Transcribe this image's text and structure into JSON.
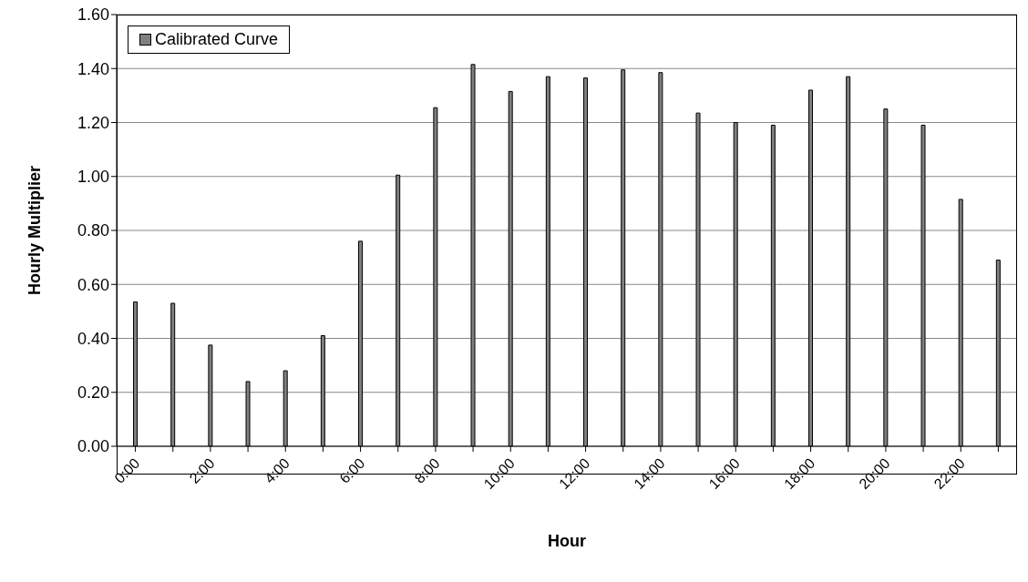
{
  "chart_data": {
    "type": "bar",
    "xlabel": "Hour",
    "ylabel": "Hourly Multiplier",
    "categories": [
      "0:00",
      null,
      "2:00",
      null,
      "4:00",
      null,
      "6:00",
      null,
      "8:00",
      null,
      "10:00",
      null,
      "12:00",
      null,
      "14:00",
      null,
      "16:00",
      null,
      "18:00",
      null,
      "20:00",
      null,
      "22:00",
      null
    ],
    "series": [
      {
        "name": "Calibrated Curve",
        "color": "#808080",
        "values": [
          0.535,
          0.53,
          0.375,
          0.24,
          0.28,
          0.41,
          0.76,
          1.005,
          1.255,
          1.415,
          1.315,
          1.37,
          1.365,
          1.395,
          1.385,
          1.235,
          1.2,
          1.19,
          1.32,
          1.37,
          1.25,
          1.19,
          0.915,
          0.69
        ]
      }
    ],
    "ylim": [
      0,
      1.6
    ],
    "yticks": [
      {
        "value": 0,
        "label": "0.00"
      },
      {
        "value": 0.2,
        "label": "0.20"
      },
      {
        "value": 0.4,
        "label": "0.40"
      },
      {
        "value": 0.6,
        "label": "0.60"
      },
      {
        "value": 0.8,
        "label": "0.80"
      },
      {
        "value": 1,
        "label": "1.00"
      },
      {
        "value": 1.2,
        "label": "1.20"
      },
      {
        "value": 1.4,
        "label": "1.40"
      },
      {
        "value": 1.6,
        "label": "1.60"
      }
    ],
    "grid": "y",
    "legend": "top left"
  }
}
